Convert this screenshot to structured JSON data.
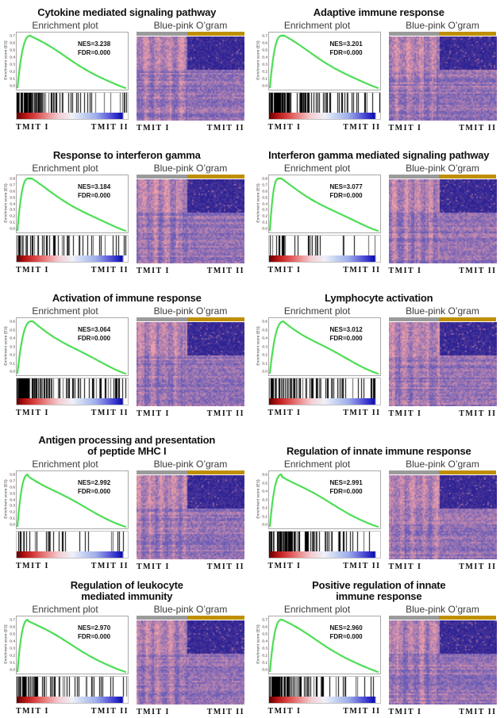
{
  "figure": {
    "background": "#ffffff",
    "description_visible_text_only": true
  },
  "labels": {
    "enrichment_plot": "Enrichment plot",
    "heatmap": "Blue-pink O’gram",
    "group1": "TMIT  I",
    "group2": "TMIT  II",
    "es_axis": "Enrichment score (ES)"
  },
  "colors": {
    "curve_green": "#21d42b",
    "title_text": "#111111",
    "subtitle_text": "#3a3a3a",
    "plot_border": "#a8a8a8",
    "class_bar_gray": "#9b9b9b",
    "class_bar_gold": "#bf8f00",
    "stats_text": "#111111",
    "heatmap_pink": [
      236,
      158,
      168
    ],
    "heatmap_purple": [
      104,
      92,
      184
    ],
    "heatmap_navy": [
      44,
      34,
      148
    ],
    "gradient_stops": [
      "#5f0000 0%",
      "#b31212 7%",
      "#d94040 16%",
      "#eb8f8f 28%",
      "#f3cdd3 38%",
      "#eff1f8 50%",
      "#c6d2f2 60%",
      "#9fb0ea 71%",
      "#6a6ade 81%",
      "#2e2ec8 90%",
      "#0d0dac 95%",
      "#ffffff 96.5%",
      "#ffffff 100%"
    ]
  },
  "panels": [
    {
      "title_line1": "Cytokine mediated signaling pathway",
      "title_line2": "",
      "nes": "NES=3.238",
      "fdr": "FDR=0.000",
      "y_ticks": [
        "0.7",
        "0.6",
        "0.5",
        "0.4",
        "0.3",
        "0.2",
        "0.1",
        "0.0"
      ],
      "y_max": 0.7,
      "peak_x": 0.12,
      "seed": 3,
      "barcode_density": 0.95
    },
    {
      "title_line1": "Adaptive immune response",
      "title_line2": "",
      "nes": "NES=3.201",
      "fdr": "FDR=0.000",
      "y_ticks": [
        "0.7",
        "0.6",
        "0.5",
        "0.4",
        "0.3",
        "0.2",
        "0.1",
        "0.0"
      ],
      "y_max": 0.7,
      "peak_x": 0.11,
      "seed": 10,
      "barcode_density": 0.9
    },
    {
      "title_line1": "Response to interferon gamma",
      "title_line2": "",
      "nes": "NES=3.184",
      "fdr": "FDR=0.000",
      "y_ticks": [
        "0.8",
        "0.7",
        "0.6",
        "0.5",
        "0.4",
        "0.3",
        "0.2",
        "0.1",
        "0.0"
      ],
      "y_max": 0.8,
      "peak_x": 0.1,
      "seed": 17,
      "barcode_density": 0.6
    },
    {
      "title_line1": "Interferon gamma mediated signaling pathway",
      "title_line2": "",
      "nes": "NES=3.077",
      "fdr": "FDR=0.000",
      "y_ticks": [
        "0.8",
        "0.7",
        "0.6",
        "0.5",
        "0.4",
        "0.3",
        "0.2",
        "0.1",
        "0.0"
      ],
      "y_max": 0.8,
      "peak_x": 0.08,
      "seed": 24,
      "barcode_density": 0.35
    },
    {
      "title_line1": "Activation of immune response",
      "title_line2": "",
      "nes": "NES=3.064",
      "fdr": "FDR=0.000",
      "y_ticks": [
        "0.6",
        "0.5",
        "0.4",
        "0.3",
        "0.2",
        "0.1",
        "0.0"
      ],
      "y_max": 0.6,
      "peak_x": 0.13,
      "seed": 31,
      "barcode_density": 0.95
    },
    {
      "title_line1": "Lymphocyte activation",
      "title_line2": "",
      "nes": "NES=3.012",
      "fdr": "FDR=0.000",
      "y_ticks": [
        "0.6",
        "0.5",
        "0.4",
        "0.3",
        "0.2",
        "0.1",
        "0.0"
      ],
      "y_max": 0.6,
      "peak_x": 0.13,
      "seed": 38,
      "barcode_density": 0.9
    },
    {
      "title_line1": "Antigen processing and presentation",
      "title_line2": "of peptide MHC I",
      "nes": "NES=2.992",
      "fdr": "FDR=0.000",
      "y_ticks": [
        "0.8",
        "0.7",
        "0.6",
        "0.5",
        "0.4",
        "0.3",
        "0.2",
        "0.1",
        "0.0"
      ],
      "y_max": 0.8,
      "peak_x": 0.1,
      "seed": 45,
      "barcode_density": 0.4
    },
    {
      "title_line1": "Regulation of innate immune response",
      "title_line2": "",
      "nes": "NES=2.991",
      "fdr": "FDR=0.000",
      "y_ticks": [
        "0.6",
        "0.5",
        "0.4",
        "0.3",
        "0.2",
        "0.1",
        "0.0"
      ],
      "y_max": 0.6,
      "peak_x": 0.11,
      "seed": 52,
      "barcode_density": 0.9
    },
    {
      "title_line1": "Regulation of leukocyte",
      "title_line2": "mediated immunity",
      "nes": "NES=2.970",
      "fdr": "FDR=0.000",
      "y_ticks": [
        "0.7",
        "0.6",
        "0.5",
        "0.4",
        "0.3",
        "0.2",
        "0.1",
        "0.0"
      ],
      "y_max": 0.7,
      "peak_x": 0.1,
      "seed": 59,
      "barcode_density": 0.85
    },
    {
      "title_line1": "Positive regulation of innate",
      "title_line2": "immune response",
      "nes": "NES=2.960",
      "fdr": "FDR=0.000",
      "y_ticks": [
        "0.7",
        "0.6",
        "0.5",
        "0.4",
        "0.3",
        "0.2",
        "0.1",
        "0.0"
      ],
      "y_max": 0.7,
      "peak_x": 0.11,
      "seed": 66,
      "barcode_density": 0.9
    }
  ],
  "chart_data": [
    {
      "type": "line",
      "title": "Cytokine mediated signaling pathway",
      "nes": 3.238,
      "fdr": 0.0,
      "ylabel": "Enrichment score (ES)",
      "ylim": [
        0.0,
        0.7
      ],
      "es_peak": 0.7,
      "peak_position_frac": 0.12,
      "groups": [
        "TMIT I",
        "TMIT II"
      ],
      "subplots": [
        "Enrichment plot",
        "Blue-pink O’gram"
      ],
      "annotations": [
        "NES=3.238",
        "FDR=0.000"
      ]
    },
    {
      "type": "line",
      "title": "Adaptive immune response",
      "nes": 3.201,
      "fdr": 0.0,
      "ylabel": "Enrichment score (ES)",
      "ylim": [
        0.0,
        0.7
      ],
      "es_peak": 0.71,
      "peak_position_frac": 0.11,
      "groups": [
        "TMIT I",
        "TMIT II"
      ],
      "subplots": [
        "Enrichment plot",
        "Blue-pink O’gram"
      ],
      "annotations": [
        "NES=3.201",
        "FDR=0.000"
      ]
    },
    {
      "type": "line",
      "title": "Response to interferon gamma",
      "nes": 3.184,
      "fdr": 0.0,
      "ylabel": "Enrichment score (ES)",
      "ylim": [
        0.0,
        0.8
      ],
      "es_peak": 0.78,
      "peak_position_frac": 0.1,
      "groups": [
        "TMIT I",
        "TMIT II"
      ],
      "subplots": [
        "Enrichment plot",
        "Blue-pink O’gram"
      ],
      "annotations": [
        "NES=3.184",
        "FDR=0.000"
      ]
    },
    {
      "type": "line",
      "title": "Interferon gamma mediated signaling pathway",
      "nes": 3.077,
      "fdr": 0.0,
      "ylabel": "Enrichment score (ES)",
      "ylim": [
        0.0,
        0.8
      ],
      "es_peak": 0.8,
      "peak_position_frac": 0.08,
      "groups": [
        "TMIT I",
        "TMIT II"
      ],
      "subplots": [
        "Enrichment plot",
        "Blue-pink O’gram"
      ],
      "annotations": [
        "NES=3.077",
        "FDR=0.000"
      ]
    },
    {
      "type": "line",
      "title": "Activation of immune response",
      "nes": 3.064,
      "fdr": 0.0,
      "ylabel": "Enrichment score (ES)",
      "ylim": [
        0.0,
        0.6
      ],
      "es_peak": 0.63,
      "peak_position_frac": 0.13,
      "groups": [
        "TMIT I",
        "TMIT II"
      ],
      "subplots": [
        "Enrichment plot",
        "Blue-pink O’gram"
      ],
      "annotations": [
        "NES=3.064",
        "FDR=0.000"
      ]
    },
    {
      "type": "line",
      "title": "Lymphocyte activation",
      "nes": 3.012,
      "fdr": 0.0,
      "ylabel": "Enrichment score (ES)",
      "ylim": [
        0.0,
        0.6
      ],
      "es_peak": 0.64,
      "peak_position_frac": 0.13,
      "groups": [
        "TMIT I",
        "TMIT II"
      ],
      "subplots": [
        "Enrichment plot",
        "Blue-pink O’gram"
      ],
      "annotations": [
        "NES=3.012",
        "FDR=0.000"
      ]
    },
    {
      "type": "line",
      "title": "Antigen processing and presentation of peptide MHC I",
      "nes": 2.992,
      "fdr": 0.0,
      "ylabel": "Enrichment score (ES)",
      "ylim": [
        0.0,
        0.8
      ],
      "es_peak": 0.76,
      "peak_position_frac": 0.1,
      "groups": [
        "TMIT I",
        "TMIT II"
      ],
      "subplots": [
        "Enrichment plot",
        "Blue-pink O’gram"
      ],
      "annotations": [
        "NES=2.992",
        "FDR=0.000"
      ]
    },
    {
      "type": "line",
      "title": "Regulation of innate immune response",
      "nes": 2.991,
      "fdr": 0.0,
      "ylabel": "Enrichment score (ES)",
      "ylim": [
        0.0,
        0.6
      ],
      "es_peak": 0.63,
      "peak_position_frac": 0.11,
      "groups": [
        "TMIT I",
        "TMIT II"
      ],
      "subplots": [
        "Enrichment plot",
        "Blue-pink O’gram"
      ],
      "annotations": [
        "NES=2.991",
        "FDR=0.000"
      ]
    },
    {
      "type": "line",
      "title": "Regulation of leukocyte mediated immunity",
      "nes": 2.97,
      "fdr": 0.0,
      "ylabel": "Enrichment score (ES)",
      "ylim": [
        0.0,
        0.7
      ],
      "es_peak": 0.68,
      "peak_position_frac": 0.1,
      "groups": [
        "TMIT I",
        "TMIT II"
      ],
      "subplots": [
        "Enrichment plot",
        "Blue-pink O’gram"
      ],
      "annotations": [
        "NES=2.970",
        "FDR=0.000"
      ]
    },
    {
      "type": "line",
      "title": "Positive regulation of innate immune response",
      "nes": 2.96,
      "fdr": 0.0,
      "ylabel": "Enrichment score (ES)",
      "ylim": [
        0.0,
        0.7
      ],
      "es_peak": 0.7,
      "peak_position_frac": 0.11,
      "groups": [
        "TMIT I",
        "TMIT II"
      ],
      "subplots": [
        "Enrichment plot",
        "Blue-pink O’gram"
      ],
      "annotations": [
        "NES=2.960",
        "FDR=0.000"
      ]
    }
  ]
}
